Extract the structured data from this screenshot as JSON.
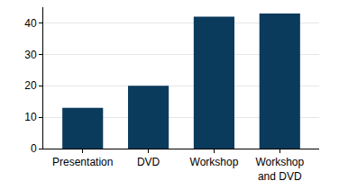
{
  "chart_data": {
    "type": "bar",
    "categories": [
      "Presentation",
      "DVD",
      "Workshop",
      "Workshop and DVD"
    ],
    "values": [
      13,
      20,
      42,
      43
    ],
    "color": "#0b3b5c",
    "ylim": [
      0,
      45
    ],
    "yticks": [
      0,
      10,
      20,
      30,
      40
    ],
    "grid": true
  }
}
